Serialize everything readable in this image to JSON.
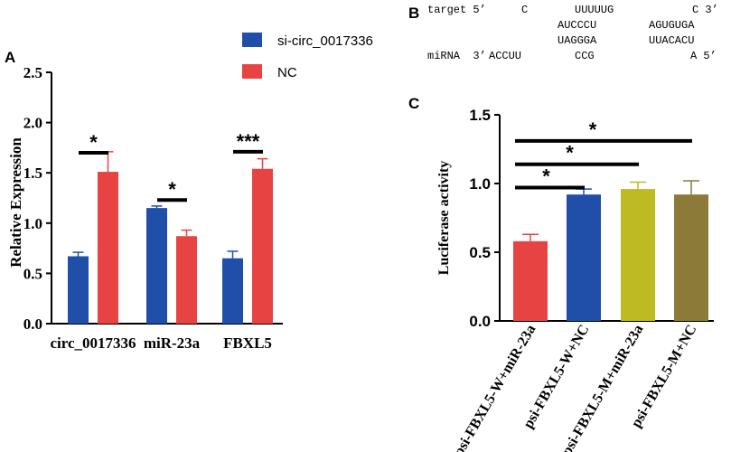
{
  "panels": {
    "a": "A",
    "b": "B",
    "c": "C"
  },
  "colors": {
    "blue": "#1f4fa8",
    "red": "#e84343",
    "yellow": "#bdbb22",
    "olive": "#8c7a38",
    "black": "#000000"
  },
  "chart_data": [
    {
      "type": "bar",
      "title": "",
      "xlabel": "",
      "ylabel": "Relative Expression",
      "ylim": [
        0,
        2.5
      ],
      "yticks": [
        "0.0",
        "0.5",
        "1.0",
        "1.5",
        "2.0",
        "2.5"
      ],
      "categories": [
        "circ_0017336",
        "miR-23a",
        "FBXL5"
      ],
      "series": [
        {
          "name": "si-circ_0017336",
          "color": "#1f4fa8",
          "values": [
            0.67,
            1.15,
            0.65
          ],
          "errors": [
            0.04,
            0.02,
            0.07
          ]
        },
        {
          "name": "NC",
          "color": "#e84343",
          "values": [
            1.51,
            0.87,
            1.54
          ],
          "errors": [
            0.2,
            0.06,
            0.1
          ]
        }
      ],
      "legend": "top-right",
      "significance": [
        {
          "category": "circ_0017336",
          "label": "*",
          "y": 1.7
        },
        {
          "category": "miR-23a",
          "label": "*",
          "y": 1.23
        },
        {
          "category": "FBXL5",
          "label": "***",
          "y": 1.71
        }
      ]
    },
    {
      "type": "bar",
      "title": "",
      "xlabel": "",
      "ylabel": "Luciferase activity",
      "ylim": [
        0,
        1.5
      ],
      "yticks": [
        "0.0",
        "0.5",
        "1.0",
        "1.5"
      ],
      "categories": [
        "psi-FBXL5-W+miR-23a",
        "psi-FBXL5-W+NC",
        "psi-FBXL5-M+miR-23a",
        "psi-FBXL5-M+NC"
      ],
      "values": [
        0.58,
        0.92,
        0.96,
        0.92
      ],
      "errors": [
        0.05,
        0.04,
        0.05,
        0.1
      ],
      "colors": [
        "#e84343",
        "#1f4fa8",
        "#bdbb22",
        "#8c7a38"
      ],
      "significance": [
        {
          "from": 0,
          "to": 1,
          "label": "*",
          "y": 0.97
        },
        {
          "from": 0,
          "to": 2,
          "label": "*",
          "y": 1.14
        },
        {
          "from": 0,
          "to": 3,
          "label": "*",
          "y": 1.31
        }
      ]
    }
  ],
  "sequence": {
    "rows": [
      {
        "label": "target 5’",
        "parts": [
          "C",
          "UUUUUG",
          "C 3’"
        ]
      },
      {
        "label": "",
        "parts": [
          "AUCCCU",
          "AGUGUGA"
        ]
      },
      {
        "label": "",
        "parts": [
          "UAGGGA",
          "UUACACU"
        ]
      },
      {
        "label": "miRNA  3’",
        "parts": [
          "ACCUU",
          "CCG",
          "A 5’"
        ]
      }
    ]
  }
}
